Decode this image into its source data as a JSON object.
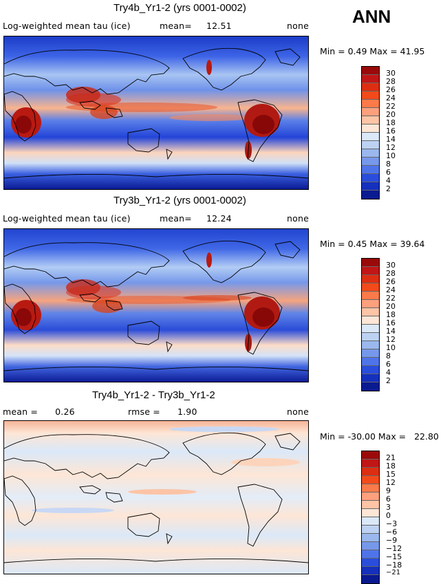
{
  "season": "ANN",
  "panels": [
    {
      "title": "Try4b_Yr1-2 (yrs 0001-0002)",
      "variable": "Log-weighted mean tau (ice)",
      "mean_label": "mean=",
      "mean_value": "12.51",
      "mask": "none",
      "minmax": "Min =    0.49 Max =   41.95"
    },
    {
      "title": "Try3b_Yr1-2 (yrs 0001-0002)",
      "variable": "Log-weighted mean tau (ice)",
      "mean_label": "mean=",
      "mean_value": "12.24",
      "mask": "none",
      "minmax": "Min =    0.45 Max =   39.64"
    },
    {
      "title": "Try4b_Yr1-2 - Try3b_Yr1-2",
      "mean_text": "mean =      0.26",
      "rmse_text": "rmse =      1.90",
      "mask": "none",
      "minmax": "Min = -30.00 Max =   22.80"
    }
  ],
  "colorbar_abs": {
    "labels": [
      "30",
      "28",
      "26",
      "24",
      "22",
      "20",
      "18",
      "16",
      "14",
      "12",
      "10",
      "8",
      "6",
      "4",
      "2"
    ],
    "colors": [
      "#9a0a0a",
      "#c01616",
      "#dc2e12",
      "#f24a1a",
      "#fa7a4a",
      "#fca07e",
      "#fdc4a6",
      "#fde6d6",
      "#dbe8f8",
      "#bdd2f2",
      "#9ab8ee",
      "#7698ea",
      "#4f74ea",
      "#2a4ddc",
      "#1530bc",
      "#0a1a90"
    ]
  },
  "colorbar_diff": {
    "labels": [
      "21",
      "18",
      "15",
      "12",
      "9",
      "6",
      "3",
      "0",
      "−3",
      "−6",
      "−9",
      "−12",
      "−15",
      "−18",
      "−21"
    ],
    "colors": [
      "#9a0a0a",
      "#c01616",
      "#dc2e12",
      "#f24a1a",
      "#fa7a4a",
      "#fca07e",
      "#fdc4a6",
      "#fde6d6",
      "#dbe8f8",
      "#bdd2f2",
      "#9ab8ee",
      "#7698ea",
      "#4f74ea",
      "#2a4ddc",
      "#1530bc",
      "#0a1a90"
    ]
  }
}
